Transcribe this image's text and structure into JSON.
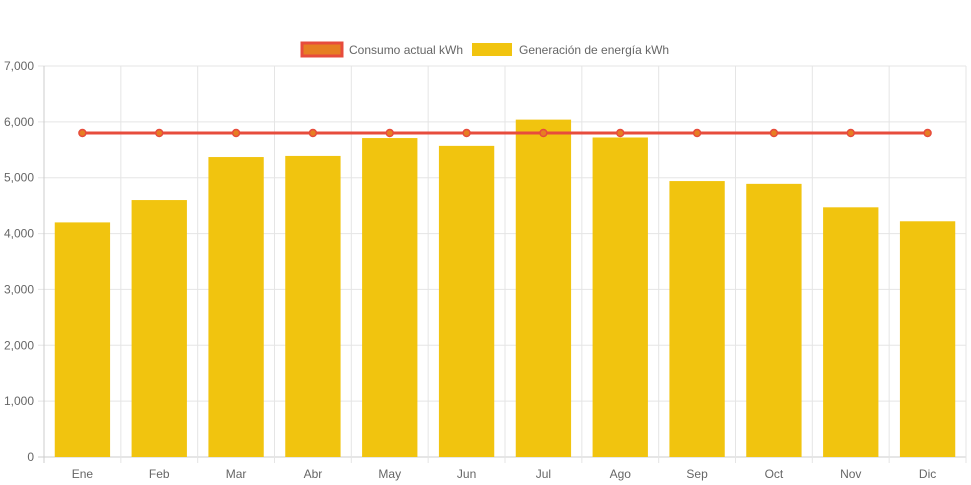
{
  "chart_data": {
    "type": "bar",
    "categories": [
      "Ene",
      "Feb",
      "Mar",
      "Abr",
      "May",
      "Jun",
      "Jul",
      "Ago",
      "Sep",
      "Oct",
      "Nov",
      "Dic"
    ],
    "series": [
      {
        "name": "Consumo actual kWh",
        "type": "line",
        "color": "#e74c3c",
        "fill_color": "#e67e22",
        "values": [
          5800,
          5800,
          5800,
          5800,
          5800,
          5800,
          5800,
          5800,
          5800,
          5800,
          5800,
          5800
        ]
      },
      {
        "name": "Generación de energía kWh",
        "type": "bar",
        "color": "#f1c40f",
        "values": [
          4200,
          4600,
          5370,
          5390,
          5710,
          5570,
          6040,
          5720,
          4940,
          4890,
          4470,
          4220
        ]
      }
    ],
    "y_ticks": [
      "0",
      "1,000",
      "2,000",
      "3,000",
      "4,000",
      "5,000",
      "6,000",
      "7,000"
    ],
    "ylim": [
      0,
      7000
    ],
    "grid": true,
    "legend_position": "top"
  }
}
